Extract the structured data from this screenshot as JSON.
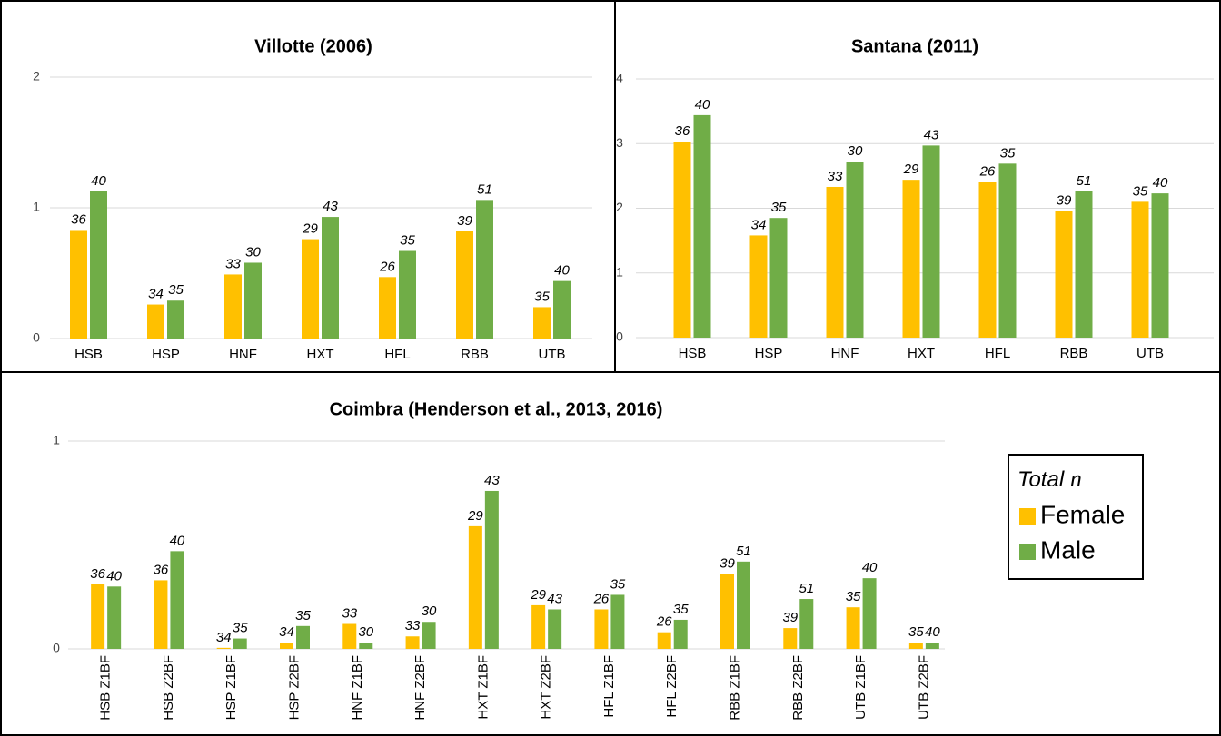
{
  "chart_data": [
    {
      "type": "bar",
      "title": "Villotte (2006)",
      "categories": [
        "HSB",
        "HSP",
        "HNF",
        "HXT",
        "HFL",
        "RBB",
        "UTB"
      ],
      "series": [
        {
          "name": "Female",
          "color": "#ffc000",
          "values": [
            0.83,
            0.26,
            0.49,
            0.76,
            0.47,
            0.82,
            0.24
          ],
          "n": [
            36,
            34,
            33,
            29,
            26,
            39,
            35
          ]
        },
        {
          "name": "Male",
          "color": "#70ad47",
          "values": [
            1.125,
            0.29,
            0.58,
            0.93,
            0.67,
            1.06,
            0.44
          ],
          "n": [
            40,
            35,
            30,
            43,
            35,
            51,
            40
          ]
        }
      ],
      "ylim": [
        0,
        2
      ],
      "yticks": [
        0,
        1,
        2
      ],
      "grid": true
    },
    {
      "type": "bar",
      "title": "Santana (2011)",
      "categories": [
        "HSB",
        "HSP",
        "HNF",
        "HXT",
        "HFL",
        "RBB",
        "UTB"
      ],
      "series": [
        {
          "name": "Female",
          "color": "#ffc000",
          "values": [
            3.03,
            1.58,
            2.33,
            2.44,
            2.41,
            1.96,
            2.1
          ],
          "n": [
            36,
            34,
            33,
            29,
            26,
            39,
            35
          ]
        },
        {
          "name": "Male",
          "color": "#70ad47",
          "values": [
            3.44,
            1.85,
            2.72,
            2.97,
            2.69,
            2.26,
            2.23
          ],
          "n": [
            40,
            35,
            30,
            43,
            35,
            51,
            40
          ]
        }
      ],
      "ylim": [
        0,
        4
      ],
      "yticks": [
        0,
        1,
        2,
        3,
        4
      ],
      "grid": true
    },
    {
      "type": "bar",
      "title": "Coimbra (Henderson et al., 2013, 2016)",
      "categories": [
        "HSB Z1BF",
        "HSB Z2BF",
        "HSP Z1BF",
        "HSP Z2BF",
        "HNF Z1BF",
        "HNF Z2BF",
        "HXT Z1BF",
        "HXT Z2BF",
        "HFL Z1BF",
        "HFL Z2BF",
        "RBB Z1BF",
        "RBB Z2BF",
        "UTB Z1BF",
        "UTB Z2BF"
      ],
      "series": [
        {
          "name": "Female",
          "color": "#ffc000",
          "values": [
            0.31,
            0.33,
            0.005,
            0.03,
            0.12,
            0.06,
            0.59,
            0.21,
            0.19,
            0.08,
            0.36,
            0.1,
            0.2,
            0.03
          ],
          "n": [
            36,
            36,
            34,
            34,
            33,
            33,
            29,
            29,
            26,
            26,
            39,
            39,
            35,
            35
          ]
        },
        {
          "name": "Male",
          "color": "#70ad47",
          "values": [
            0.3,
            0.47,
            0.05,
            0.11,
            0.03,
            0.13,
            0.76,
            0.19,
            0.26,
            0.14,
            0.42,
            0.24,
            0.34,
            0.03
          ],
          "n": [
            40,
            40,
            35,
            35,
            30,
            30,
            43,
            43,
            35,
            35,
            51,
            51,
            40,
            40
          ]
        }
      ],
      "ylim": [
        0,
        1
      ],
      "yticks": [
        0,
        1
      ],
      "minor_yticks": [
        0.5
      ],
      "grid": true,
      "legend": true,
      "legend_title": "Total n"
    }
  ]
}
